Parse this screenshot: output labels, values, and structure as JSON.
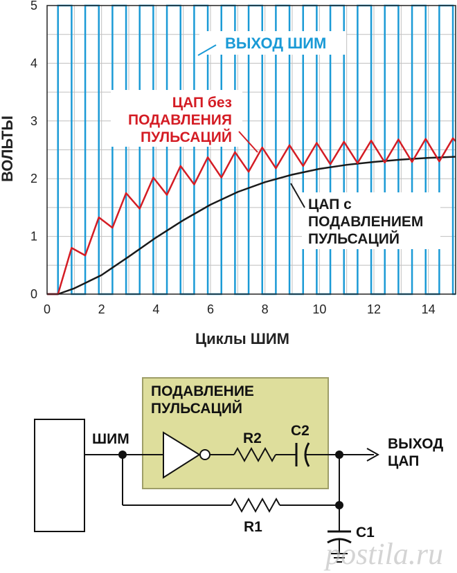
{
  "chart_data": {
    "type": "line",
    "xlabel": "Циклы ШИМ",
    "ylabel": "ВОЛЬТЫ",
    "xlim": [
      0,
      15
    ],
    "ylim": [
      0,
      5
    ],
    "x_ticks": [
      "0",
      "2",
      "4",
      "6",
      "8",
      "10",
      "12",
      "14"
    ],
    "y_ticks": [
      "0",
      "1",
      "2",
      "3",
      "4",
      "5"
    ],
    "grid": true,
    "annotations": {
      "pwm": "ВЫХОД ШИМ",
      "no_ripple_1": "ЦАП без",
      "no_ripple_2": "ПОДАВЛЕНИЯ",
      "no_ripple_3": "ПУЛЬСАЦИЙ",
      "with_ripple_1": "ЦАП с",
      "with_ripple_2": "ПОДАВЛЕНИЕМ",
      "with_ripple_3": "ПУЛЬСАЦИЙ"
    },
    "series": [
      {
        "color": "#1a9ad6",
        "kind": "pwm-square",
        "period": 1,
        "duty": 0.5,
        "high": 5,
        "low": 0,
        "start": 0.4
      },
      {
        "color": "#d41c24",
        "x": [
          0,
          0.4,
          0.9,
          1.4,
          1.9,
          2.4,
          2.9,
          3.4,
          3.9,
          4.4,
          4.9,
          5.4,
          5.9,
          6.4,
          6.9,
          7.4,
          7.9,
          8.4,
          8.9,
          9.4,
          9.9,
          10.4,
          10.9,
          11.4,
          11.9,
          12.4,
          12.9,
          13.4,
          13.9,
          14.4,
          14.9,
          15
        ],
        "y": [
          0,
          0,
          0.8,
          0.67,
          1.33,
          1.15,
          1.75,
          1.48,
          2.02,
          1.72,
          2.22,
          1.9,
          2.37,
          2.02,
          2.46,
          2.12,
          2.54,
          2.18,
          2.58,
          2.22,
          2.62,
          2.25,
          2.64,
          2.27,
          2.66,
          2.28,
          2.68,
          2.29,
          2.69,
          2.3,
          2.7,
          2.65
        ]
      },
      {
        "color": "#1a1a1a",
        "x": [
          0,
          0.4,
          1,
          2,
          3,
          4,
          5,
          6,
          7,
          8,
          9,
          10,
          11,
          12,
          13,
          14,
          15
        ],
        "y": [
          0,
          0,
          0.1,
          0.33,
          0.65,
          0.98,
          1.28,
          1.55,
          1.77,
          1.94,
          2.07,
          2.17,
          2.24,
          2.29,
          2.33,
          2.36,
          2.38
        ]
      }
    ]
  },
  "schematic": {
    "box_title_1": "ПОДАВЛЕНИЕ",
    "box_title_2": "ПУЛЬСАЦИЙ",
    "pwm_label": "ШИМ",
    "r2": "R2",
    "c2": "C2",
    "r1": "R1",
    "c1": "C1",
    "out_1": "ВЫХОД",
    "out_2": "ЦАП"
  },
  "watermark": "postila.ru",
  "colors": {
    "pwm": "#1a9ad6",
    "dac_no_filter": "#d41c24",
    "dac_filter": "#1a1a1a",
    "box_fill": "#dede9c",
    "box_border": "#9e9e68"
  }
}
